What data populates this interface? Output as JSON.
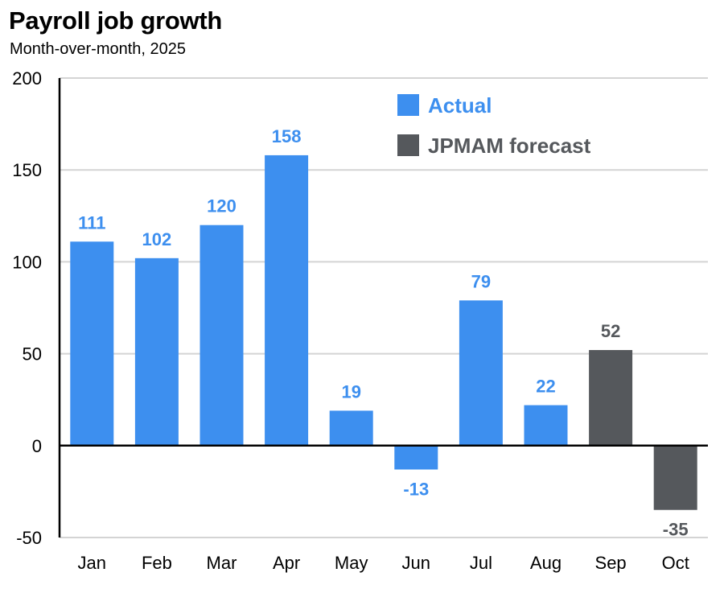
{
  "chart_data": {
    "type": "bar",
    "title": "Payroll job growth",
    "subtitle": "Month-over-month, 2025",
    "categories": [
      "Jan",
      "Feb",
      "Mar",
      "Apr",
      "May",
      "Jun",
      "Jul",
      "Aug",
      "Sep",
      "Oct"
    ],
    "values": [
      111,
      102,
      120,
      158,
      19,
      -13,
      79,
      22,
      52,
      -35
    ],
    "value_labels": [
      "111",
      "102",
      "120",
      "158",
      "19",
      "-13",
      "79",
      "22",
      "52",
      "-35"
    ],
    "series_kind": [
      "actual",
      "actual",
      "actual",
      "actual",
      "actual",
      "actual",
      "actual",
      "actual",
      "forecast",
      "forecast"
    ],
    "ylim": [
      -50,
      200
    ],
    "yticks": [
      -50,
      0,
      50,
      100,
      150,
      200
    ],
    "ytick_labels": [
      "-50",
      "0",
      "50",
      "100",
      "150",
      "200"
    ],
    "grid": true,
    "legend_position": "top-right",
    "legend": [
      {
        "key": "actual",
        "label": "Actual",
        "color": "#3d8fef",
        "text_color": "#3d8fef"
      },
      {
        "key": "forecast",
        "label": "JPMAM forecast",
        "color": "#55585c",
        "text_color": "#55585c"
      }
    ]
  }
}
